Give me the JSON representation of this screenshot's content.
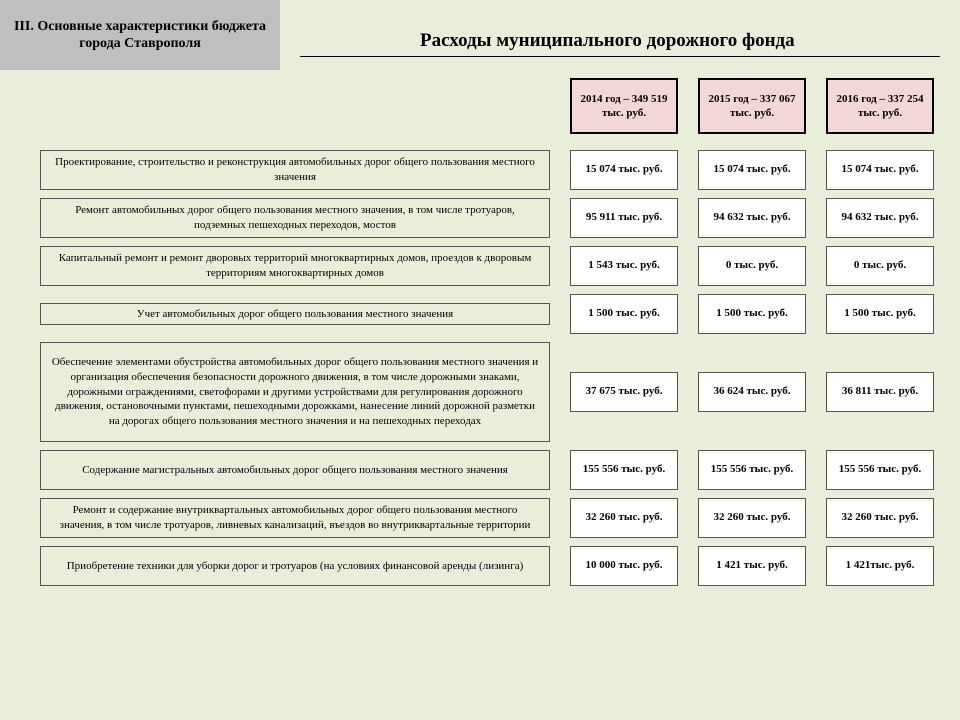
{
  "header": {
    "section": "III.   Основные характеристики бюджета города Ставрополя",
    "title": "Расходы муниципального дорожного фонда"
  },
  "years": [
    "2014 год – 349 519 тыс. руб.",
    "2015 год – 337 067 тыс. руб.",
    "2016 год – 337 254 тыс. руб."
  ],
  "rows": [
    {
      "desc": "Проектирование, строительство и реконструкция автомобильных дорог общего пользования местного значения",
      "vals": [
        "15 074 тыс. руб.",
        "15 074 тыс. руб.",
        "15 074 тыс. руб."
      ]
    },
    {
      "desc": "Ремонт автомобильных дорог общего пользования местного значения, в том числе тротуаров, подземных пешеходных переходов, мостов",
      "vals": [
        "95 911 тыс. руб.",
        "94 632 тыс. руб.",
        "94 632 тыс. руб."
      ]
    },
    {
      "desc": "Капитальный ремонт и ремонт дворовых территорий многоквартирных домов, проездов к дворовым территориям многоквартирных домов",
      "vals": [
        "1 543 тыс. руб.",
        "0 тыс. руб.",
        "0 тыс. руб."
      ]
    },
    {
      "desc": "Учет автомобильных дорог общего пользования местного значения",
      "vals": [
        "1 500 тыс. руб.",
        "1 500 тыс. руб.",
        "1 500 тыс. руб."
      ]
    },
    {
      "desc": "Обеспечение элементами обустройства автомобильных дорог общего пользования местного значения и организация обеспечения безопасности дорожного движения, в том числе дорожными знаками, дорожными ограждениями, светофорами и другими устройствами для регулирования дорожного движения, остановочными пунктами, пешеходными дорожками, нанесение линий дорожной разметки на дорогах общего пользования местного значения и на пешеходных переходах",
      "vals": [
        "37 675 тыс. руб.",
        "36 624 тыс. руб.",
        "36 811 тыс. руб."
      ]
    },
    {
      "desc": "Содержание магистральных  автомобильных дорог общего пользования местного значения",
      "vals": [
        "155 556 тыс. руб.",
        "155 556 тыс. руб.",
        "155 556 тыс. руб."
      ]
    },
    {
      "desc": "Ремонт и содержание внутриквартальных автомобильных дорог общего пользования местного значения, в том числе тротуаров, ливневых канализаций, въездов во внутриквартальные территории",
      "vals": [
        "32 260 тыс. руб.",
        "32 260 тыс. руб.",
        "32 260 тыс. руб."
      ]
    },
    {
      "desc": "Приобретение техники для уборки дорог и тротуаров (на условиях финансовой аренды (лизинга)",
      "vals": [
        "10 000 тыс. руб.",
        "1 421 тыс. руб.",
        "1 421тыс. руб."
      ]
    }
  ],
  "style": {
    "page_bg": "#e9eeda",
    "header_tab_bg": "#bfbfbf",
    "year_box_bg": "#f3d6d6",
    "val_box_bg": "#ffffff",
    "border_color": "#000000",
    "text_color": "#000000"
  }
}
